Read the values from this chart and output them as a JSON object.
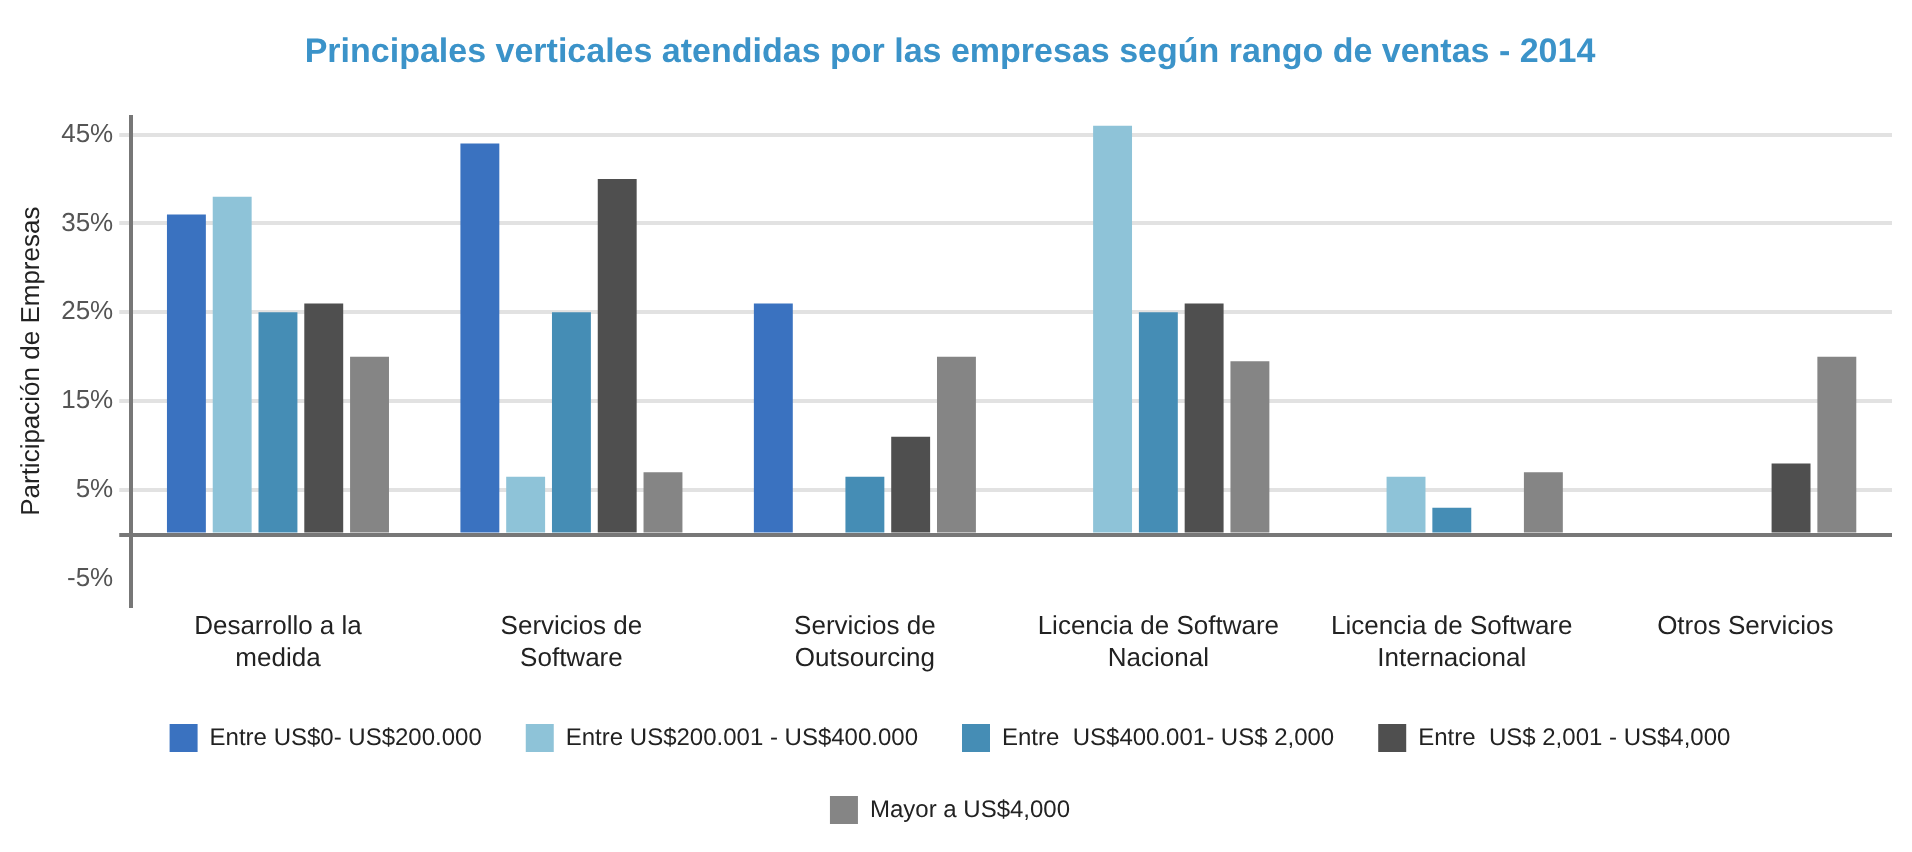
{
  "chart_data": {
    "type": "bar",
    "title": "Principales verticales atendidas por las empresas según rango de ventas - 2014",
    "ylabel": "Participación de Empresas",
    "categories": [
      "Desarrollo a la medida",
      "Servicios de Software",
      "Servicios de Outsourcing",
      "Licencia de Software Nacional",
      "Licencia de Software Internacional",
      "Otros Servicios"
    ],
    "series": [
      {
        "name": "Entre US$0- US$200.000",
        "color": "#3a72c0",
        "values": [
          36,
          44,
          26,
          null,
          null,
          null
        ]
      },
      {
        "name": "Entre US$200.001 - US$400.000",
        "color": "#8ec3d8",
        "values": [
          38,
          6.5,
          null,
          46,
          6.5,
          null
        ]
      },
      {
        "name": "Entre  US$400.001- US$ 2,000",
        "color": "#458db5",
        "values": [
          25,
          25,
          6.5,
          25,
          3,
          null
        ]
      },
      {
        "name": "Entre  US$ 2,001 - US$4,000",
        "color": "#4f4f4f",
        "values": [
          26,
          40,
          11,
          26,
          null,
          8
        ]
      },
      {
        "name": "Mayor a US$4,000",
        "color": "#858585",
        "values": [
          20,
          7,
          20,
          19.5,
          7,
          20
        ]
      }
    ],
    "ylim": [
      -8,
      47
    ],
    "yticks": [
      {
        "value": 45,
        "label": "45%"
      },
      {
        "value": 35,
        "label": "35%"
      },
      {
        "value": 25,
        "label": "25%"
      },
      {
        "value": 15,
        "label": "15%"
      },
      {
        "value": 5,
        "label": "5%"
      },
      {
        "value": 0,
        "label": null
      },
      {
        "value": -5,
        "label": "-5%"
      }
    ],
    "grid": "y",
    "legend": "bottom"
  }
}
